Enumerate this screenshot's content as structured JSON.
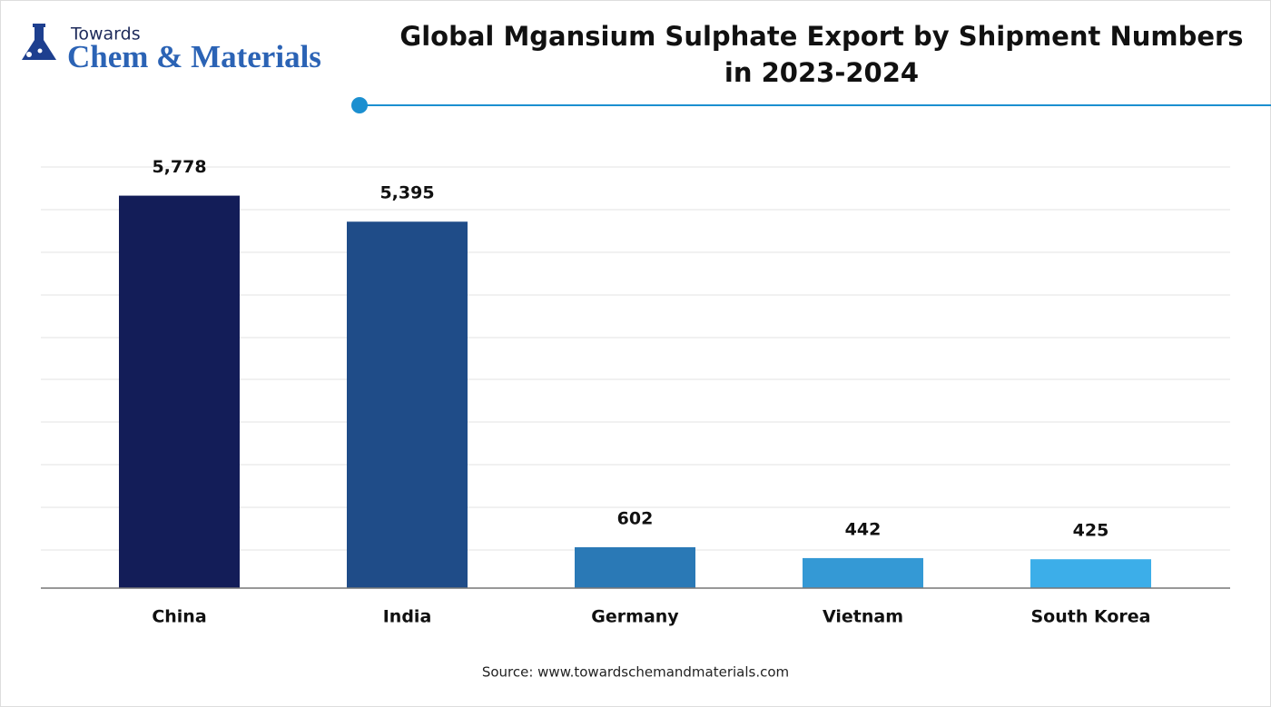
{
  "logo": {
    "top": "Towards",
    "name": "Chem & Materials"
  },
  "chart_data": {
    "type": "bar",
    "title": "Global Mgansium Sulphate Export by Shipment Numbers in 2023-2024",
    "categories": [
      "China",
      "India",
      "Germany",
      "Vietnam",
      "South Korea"
    ],
    "values": [
      5778,
      5395,
      602,
      442,
      425
    ],
    "value_labels": [
      "5,778",
      "5,395",
      "602",
      "442",
      "425"
    ],
    "colors": [
      "#131d58",
      "#1f4c88",
      "#2a79b6",
      "#3499d5",
      "#3caee9"
    ],
    "ylim": [
      0,
      6200
    ]
  },
  "source": "Source: www.towardschemandmaterials.com"
}
